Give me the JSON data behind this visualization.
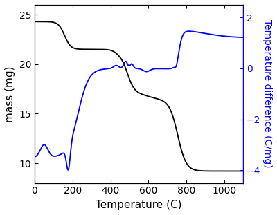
{
  "title": "",
  "xlabel": "Temperature (C)",
  "ylabel_left": "mass (mg)",
  "ylabel_right": "Temperature difference (C/mg)",
  "xlim": [
    0,
    1100
  ],
  "ylim_left": [
    8,
    26
  ],
  "ylim_right": [
    -4.5,
    2.5
  ],
  "yticks_left": [
    10,
    15,
    20,
    25
  ],
  "yticks_right": [
    -4,
    -2,
    0,
    2
  ],
  "xticks": [
    0,
    200,
    400,
    600,
    800,
    1000
  ],
  "line_color_mass": "#000000",
  "line_color_temp": "#0000ff",
  "background_color": "#ffffff",
  "figsize": [
    4.0,
    3.11
  ],
  "dpi": 100
}
